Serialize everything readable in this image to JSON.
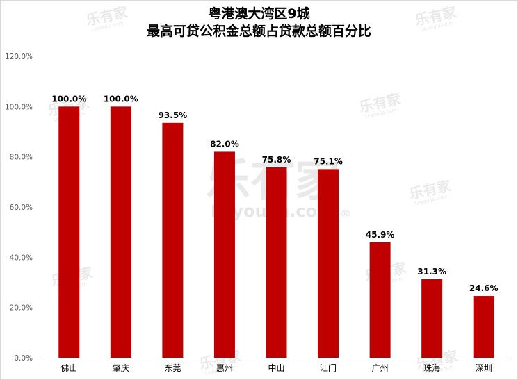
{
  "chart_data": {
    "type": "bar",
    "title_line1": "粤港澳大湾区9城",
    "title_line2": "最高可贷公积金总额占贷款总额百分比",
    "categories": [
      "佛山",
      "肇庆",
      "东莞",
      "惠州",
      "中山",
      "江门",
      "广州",
      "珠海",
      "深圳"
    ],
    "values": [
      100.0,
      100.0,
      93.5,
      82.0,
      75.8,
      75.1,
      45.9,
      31.3,
      24.6
    ],
    "data_labels": [
      "100.0%",
      "100.0%",
      "93.5%",
      "82.0%",
      "75.8%",
      "75.1%",
      "45.9%",
      "31.3%",
      "24.6%"
    ],
    "yticks": [
      "0.0%",
      "20.0%",
      "40.0%",
      "60.0%",
      "80.0%",
      "100.0%",
      "120.0%"
    ],
    "ylim": [
      0,
      120
    ],
    "bar_color": "#c00000",
    "grid": false,
    "legend": "none"
  },
  "watermark": {
    "brand": "乐有家",
    "url": "Leyoujia.com",
    "mark": "®"
  }
}
